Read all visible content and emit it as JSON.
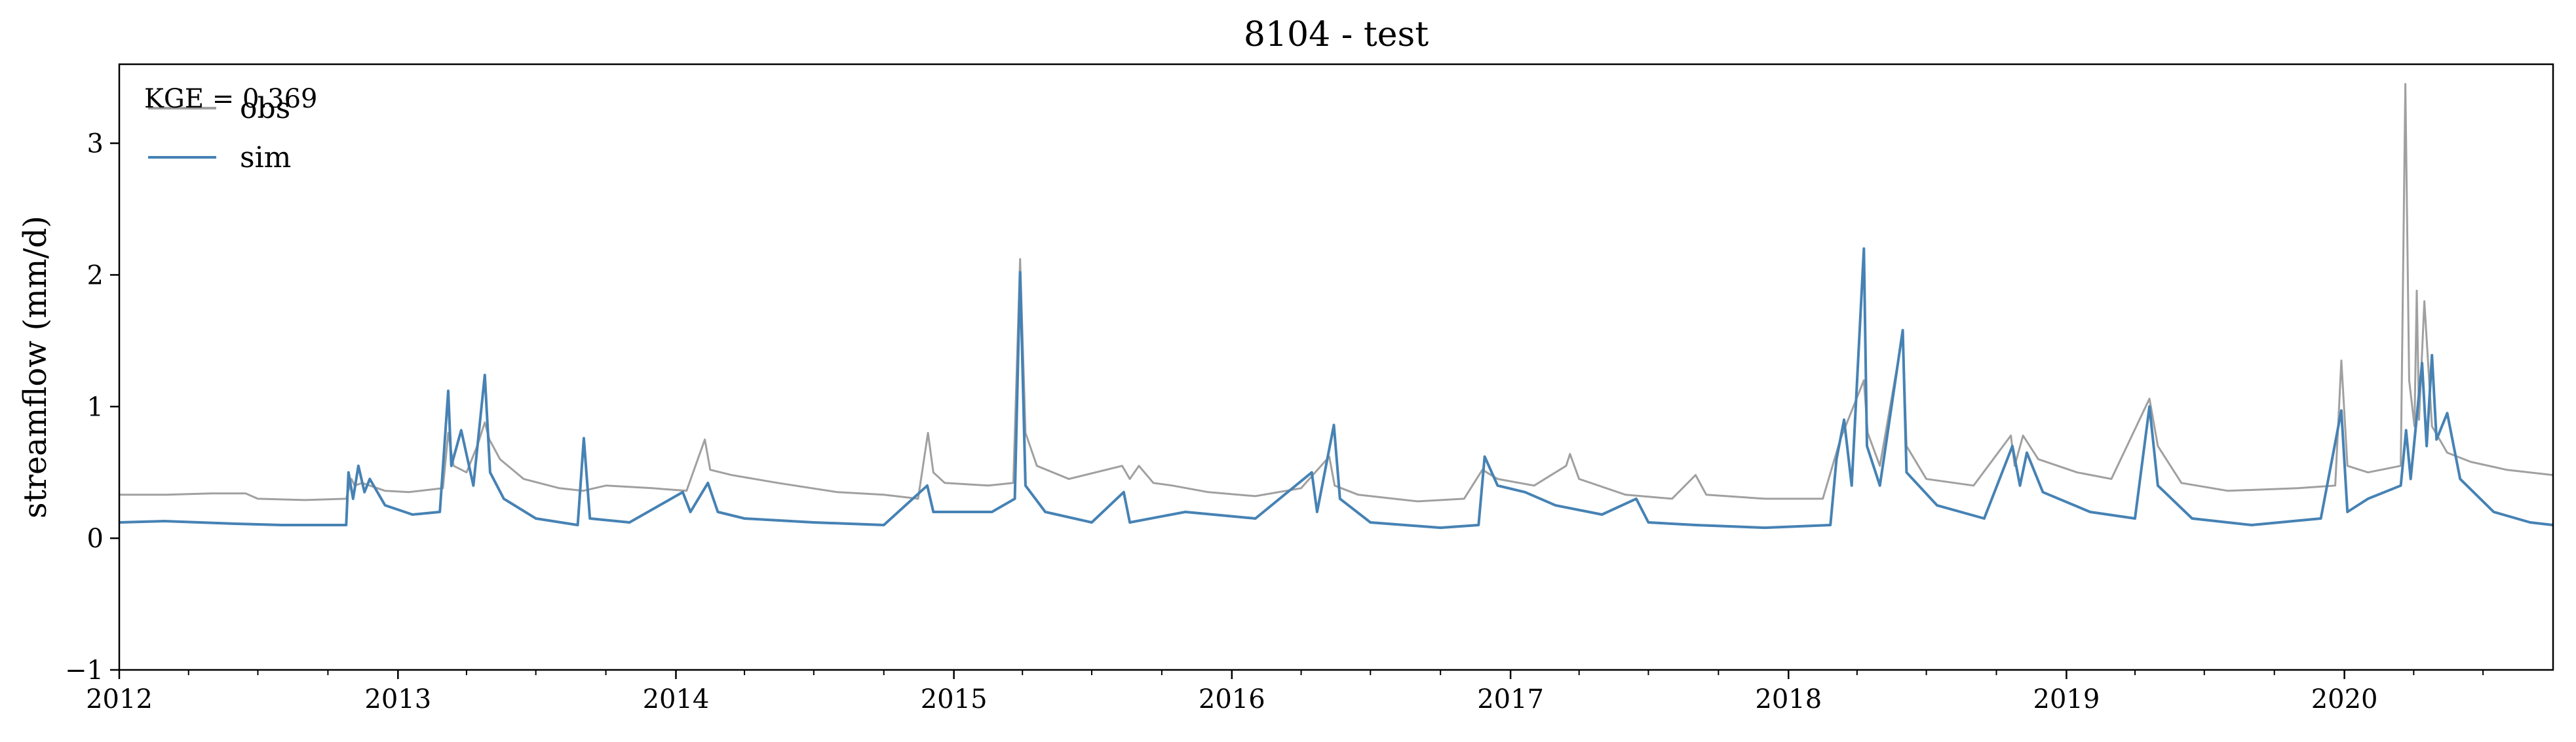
{
  "chart_data": {
    "type": "line",
    "title": "8104 - test",
    "ylabel": "streamflow (mm/d)",
    "xlabel": "",
    "xlim": [
      "2012-01-01",
      "2020-10-01"
    ],
    "ylim": [
      -1,
      3.6
    ],
    "yticks": [
      {
        "value": -1,
        "label": "−1"
      },
      {
        "value": 0,
        "label": "0"
      },
      {
        "value": 1,
        "label": "1"
      },
      {
        "value": 2,
        "label": "2"
      },
      {
        "value": 3,
        "label": "3"
      }
    ],
    "xticks": [
      {
        "date": "2012-01-01",
        "label": "2012"
      },
      {
        "date": "2013-01-01",
        "label": "2013"
      },
      {
        "date": "2014-01-01",
        "label": "2014"
      },
      {
        "date": "2015-01-01",
        "label": "2015"
      },
      {
        "date": "2016-01-01",
        "label": "2016"
      },
      {
        "date": "2017-01-01",
        "label": "2017"
      },
      {
        "date": "2018-01-01",
        "label": "2018"
      },
      {
        "date": "2019-01-01",
        "label": "2019"
      },
      {
        "date": "2020-01-01",
        "label": "2020"
      }
    ],
    "grid": false,
    "legend_position": "top-left",
    "annotation": "KGE = 0.369",
    "series": [
      {
        "name": "obs",
        "color": "#a0a0a0",
        "points": [
          [
            "2012-01-01",
            0.33
          ],
          [
            "2012-03-01",
            0.33
          ],
          [
            "2012-05-01",
            0.34
          ],
          [
            "2012-06-15",
            0.34
          ],
          [
            "2012-07-01",
            0.3
          ],
          [
            "2012-09-01",
            0.29
          ],
          [
            "2012-10-25",
            0.3
          ],
          [
            "2012-11-01",
            0.45
          ],
          [
            "2012-11-05",
            0.4
          ],
          [
            "2012-11-15",
            0.42
          ],
          [
            "2012-12-15",
            0.36
          ],
          [
            "2013-01-15",
            0.35
          ],
          [
            "2013-03-01",
            0.38
          ],
          [
            "2013-03-08",
            0.8
          ],
          [
            "2013-03-15",
            0.55
          ],
          [
            "2013-04-01",
            0.5
          ],
          [
            "2013-04-15",
            0.7
          ],
          [
            "2013-04-25",
            0.88
          ],
          [
            "2013-05-01",
            0.75
          ],
          [
            "2013-05-15",
            0.6
          ],
          [
            "2013-06-15",
            0.45
          ],
          [
            "2013-08-01",
            0.38
          ],
          [
            "2013-09-01",
            0.36
          ],
          [
            "2013-10-01",
            0.4
          ],
          [
            "2013-12-01",
            0.38
          ],
          [
            "2014-01-15",
            0.36
          ],
          [
            "2014-02-08",
            0.75
          ],
          [
            "2014-02-15",
            0.52
          ],
          [
            "2014-03-15",
            0.48
          ],
          [
            "2014-05-15",
            0.42
          ],
          [
            "2014-08-01",
            0.35
          ],
          [
            "2014-10-01",
            0.33
          ],
          [
            "2014-11-15",
            0.3
          ],
          [
            "2014-11-28",
            0.8
          ],
          [
            "2014-12-05",
            0.5
          ],
          [
            "2014-12-20",
            0.42
          ],
          [
            "2015-02-15",
            0.4
          ],
          [
            "2015-03-20",
            0.42
          ],
          [
            "2015-03-29",
            2.12
          ],
          [
            "2015-04-05",
            0.8
          ],
          [
            "2015-04-20",
            0.55
          ],
          [
            "2015-06-01",
            0.45
          ],
          [
            "2015-08-10",
            0.55
          ],
          [
            "2015-08-20",
            0.45
          ],
          [
            "2015-09-01",
            0.55
          ],
          [
            "2015-09-20",
            0.42
          ],
          [
            "2015-10-15",
            0.4
          ],
          [
            "2015-12-01",
            0.35
          ],
          [
            "2016-02-01",
            0.32
          ],
          [
            "2016-04-01",
            0.38
          ],
          [
            "2016-05-08",
            0.62
          ],
          [
            "2016-05-15",
            0.4
          ],
          [
            "2016-06-15",
            0.33
          ],
          [
            "2016-09-01",
            0.28
          ],
          [
            "2016-11-01",
            0.3
          ],
          [
            "2016-11-25",
            0.52
          ],
          [
            "2016-12-15",
            0.45
          ],
          [
            "2017-02-01",
            0.4
          ],
          [
            "2017-03-15",
            0.55
          ],
          [
            "2017-03-20",
            0.64
          ],
          [
            "2017-04-01",
            0.45
          ],
          [
            "2017-06-01",
            0.33
          ],
          [
            "2017-08-01",
            0.3
          ],
          [
            "2017-09-01",
            0.48
          ],
          [
            "2017-09-15",
            0.33
          ],
          [
            "2017-12-01",
            0.3
          ],
          [
            "2018-02-15",
            0.3
          ],
          [
            "2018-03-10",
            0.75
          ],
          [
            "2018-04-10",
            1.2
          ],
          [
            "2018-04-15",
            0.8
          ],
          [
            "2018-05-01",
            0.55
          ],
          [
            "2018-05-31",
            1.55
          ],
          [
            "2018-06-05",
            0.7
          ],
          [
            "2018-07-01",
            0.45
          ],
          [
            "2018-09-01",
            0.4
          ],
          [
            "2018-10-20",
            0.78
          ],
          [
            "2018-10-25",
            0.55
          ],
          [
            "2018-11-05",
            0.78
          ],
          [
            "2018-11-25",
            0.6
          ],
          [
            "2019-01-15",
            0.5
          ],
          [
            "2019-03-01",
            0.45
          ],
          [
            "2019-04-20",
            1.06
          ],
          [
            "2019-05-01",
            0.7
          ],
          [
            "2019-06-01",
            0.42
          ],
          [
            "2019-08-01",
            0.36
          ],
          [
            "2019-11-01",
            0.38
          ],
          [
            "2019-12-20",
            0.4
          ],
          [
            "2019-12-28",
            1.35
          ],
          [
            "2020-01-05",
            0.55
          ],
          [
            "2020-02-01",
            0.5
          ],
          [
            "2020-03-15",
            0.55
          ],
          [
            "2020-03-21",
            3.45
          ],
          [
            "2020-03-26",
            1.2
          ],
          [
            "2020-04-02",
            0.85
          ],
          [
            "2020-04-05",
            1.88
          ],
          [
            "2020-04-08",
            0.9
          ],
          [
            "2020-04-15",
            1.8
          ],
          [
            "2020-04-25",
            0.85
          ],
          [
            "2020-05-15",
            0.65
          ],
          [
            "2020-06-15",
            0.58
          ],
          [
            "2020-08-01",
            0.52
          ],
          [
            "2020-10-01",
            0.48
          ]
        ]
      },
      {
        "name": "sim",
        "color": "#4682b4",
        "points": [
          [
            "2012-01-01",
            0.12
          ],
          [
            "2012-03-01",
            0.13
          ],
          [
            "2012-06-01",
            0.11
          ],
          [
            "2012-08-01",
            0.1
          ],
          [
            "2012-10-25",
            0.1
          ],
          [
            "2012-10-28",
            0.5
          ],
          [
            "2012-11-03",
            0.3
          ],
          [
            "2012-11-10",
            0.55
          ],
          [
            "2012-11-18",
            0.35
          ],
          [
            "2012-11-25",
            0.45
          ],
          [
            "2012-12-15",
            0.25
          ],
          [
            "2013-01-20",
            0.18
          ],
          [
            "2013-02-25",
            0.2
          ],
          [
            "2013-03-08",
            1.12
          ],
          [
            "2013-03-12",
            0.55
          ],
          [
            "2013-03-25",
            0.82
          ],
          [
            "2013-04-10",
            0.4
          ],
          [
            "2013-04-25",
            1.24
          ],
          [
            "2013-05-02",
            0.5
          ],
          [
            "2013-05-20",
            0.3
          ],
          [
            "2013-07-01",
            0.15
          ],
          [
            "2013-08-25",
            0.1
          ],
          [
            "2013-09-02",
            0.76
          ],
          [
            "2013-09-10",
            0.15
          ],
          [
            "2013-11-01",
            0.12
          ],
          [
            "2014-01-10",
            0.35
          ],
          [
            "2014-01-20",
            0.2
          ],
          [
            "2014-02-12",
            0.42
          ],
          [
            "2014-02-25",
            0.2
          ],
          [
            "2014-04-01",
            0.15
          ],
          [
            "2014-07-01",
            0.12
          ],
          [
            "2014-10-01",
            0.1
          ],
          [
            "2014-11-27",
            0.4
          ],
          [
            "2014-12-05",
            0.2
          ],
          [
            "2015-02-20",
            0.2
          ],
          [
            "2015-03-22",
            0.3
          ],
          [
            "2015-03-29",
            2.02
          ],
          [
            "2015-04-05",
            0.4
          ],
          [
            "2015-05-01",
            0.2
          ],
          [
            "2015-07-01",
            0.12
          ],
          [
            "2015-08-12",
            0.35
          ],
          [
            "2015-08-20",
            0.12
          ],
          [
            "2015-11-01",
            0.2
          ],
          [
            "2016-02-01",
            0.15
          ],
          [
            "2016-04-15",
            0.5
          ],
          [
            "2016-04-22",
            0.2
          ],
          [
            "2016-05-14",
            0.86
          ],
          [
            "2016-05-22",
            0.3
          ],
          [
            "2016-07-01",
            0.12
          ],
          [
            "2016-10-01",
            0.08
          ],
          [
            "2016-11-20",
            0.1
          ],
          [
            "2016-11-28",
            0.62
          ],
          [
            "2016-12-15",
            0.4
          ],
          [
            "2017-01-20",
            0.35
          ],
          [
            "2017-03-01",
            0.25
          ],
          [
            "2017-05-01",
            0.18
          ],
          [
            "2017-06-15",
            0.3
          ],
          [
            "2017-07-01",
            0.12
          ],
          [
            "2017-09-01",
            0.1
          ],
          [
            "2017-12-01",
            0.08
          ],
          [
            "2018-02-25",
            0.1
          ],
          [
            "2018-03-05",
            0.6
          ],
          [
            "2018-03-15",
            0.9
          ],
          [
            "2018-03-25",
            0.4
          ],
          [
            "2018-04-10",
            2.2
          ],
          [
            "2018-04-14",
            0.7
          ],
          [
            "2018-05-01",
            0.4
          ],
          [
            "2018-05-31",
            1.58
          ],
          [
            "2018-06-05",
            0.5
          ],
          [
            "2018-07-15",
            0.25
          ],
          [
            "2018-09-15",
            0.15
          ],
          [
            "2018-10-22",
            0.7
          ],
          [
            "2018-11-01",
            0.4
          ],
          [
            "2018-11-10",
            0.65
          ],
          [
            "2018-12-01",
            0.35
          ],
          [
            "2019-02-01",
            0.2
          ],
          [
            "2019-04-01",
            0.15
          ],
          [
            "2019-04-20",
            1.0
          ],
          [
            "2019-05-01",
            0.4
          ],
          [
            "2019-06-15",
            0.15
          ],
          [
            "2019-09-01",
            0.1
          ],
          [
            "2019-12-01",
            0.15
          ],
          [
            "2019-12-28",
            0.97
          ],
          [
            "2020-01-05",
            0.2
          ],
          [
            "2020-02-01",
            0.3
          ],
          [
            "2020-03-15",
            0.4
          ],
          [
            "2020-03-22",
            0.82
          ],
          [
            "2020-03-28",
            0.45
          ],
          [
            "2020-04-12",
            1.33
          ],
          [
            "2020-04-18",
            0.7
          ],
          [
            "2020-04-25",
            1.39
          ],
          [
            "2020-05-01",
            0.75
          ],
          [
            "2020-05-15",
            0.95
          ],
          [
            "2020-06-01",
            0.45
          ],
          [
            "2020-07-15",
            0.2
          ],
          [
            "2020-09-01",
            0.12
          ],
          [
            "2020-10-01",
            0.1
          ]
        ]
      }
    ]
  }
}
